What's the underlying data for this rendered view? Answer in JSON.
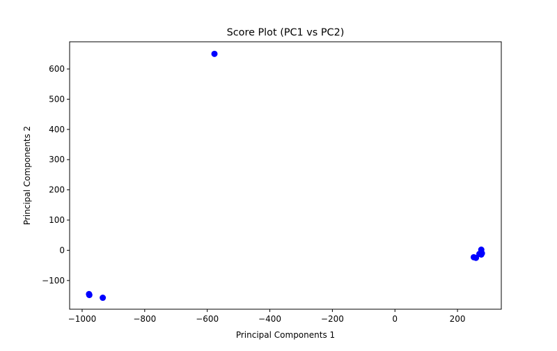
{
  "chart_data": {
    "type": "scatter",
    "title": "Score Plot (PC1 vs PC2)",
    "xlabel": "Principal Components 1",
    "ylabel": "Principal Components 2",
    "xlim": [
      -1040,
      340
    ],
    "ylim": [
      -195,
      690
    ],
    "xticks": [
      {
        "value": -1000,
        "label": "−1000"
      },
      {
        "value": -800,
        "label": "−800"
      },
      {
        "value": -600,
        "label": "−600"
      },
      {
        "value": -400,
        "label": "−400"
      },
      {
        "value": -200,
        "label": "−200"
      },
      {
        "value": 0,
        "label": "0"
      },
      {
        "value": 200,
        "label": "200"
      }
    ],
    "yticks": [
      {
        "value": -100,
        "label": "−100"
      },
      {
        "value": 0,
        "label": "0"
      },
      {
        "value": 100,
        "label": "100"
      },
      {
        "value": 200,
        "label": "200"
      },
      {
        "value": 300,
        "label": "300"
      },
      {
        "value": 400,
        "label": "400"
      },
      {
        "value": 500,
        "label": "500"
      },
      {
        "value": 600,
        "label": "600"
      }
    ],
    "grid": false,
    "marker_color": "#0000ff",
    "series": [
      {
        "points": [
          {
            "x": -577,
            "y": 650
          },
          {
            "x": -978,
            "y": -145
          },
          {
            "x": -977,
            "y": -148
          },
          {
            "x": -934,
            "y": -157
          },
          {
            "x": 252,
            "y": -23
          },
          {
            "x": 259,
            "y": -25
          },
          {
            "x": 270,
            "y": -12
          },
          {
            "x": 276,
            "y": -14
          },
          {
            "x": 278,
            "y": -10
          },
          {
            "x": 276,
            "y": 2
          }
        ]
      }
    ]
  }
}
